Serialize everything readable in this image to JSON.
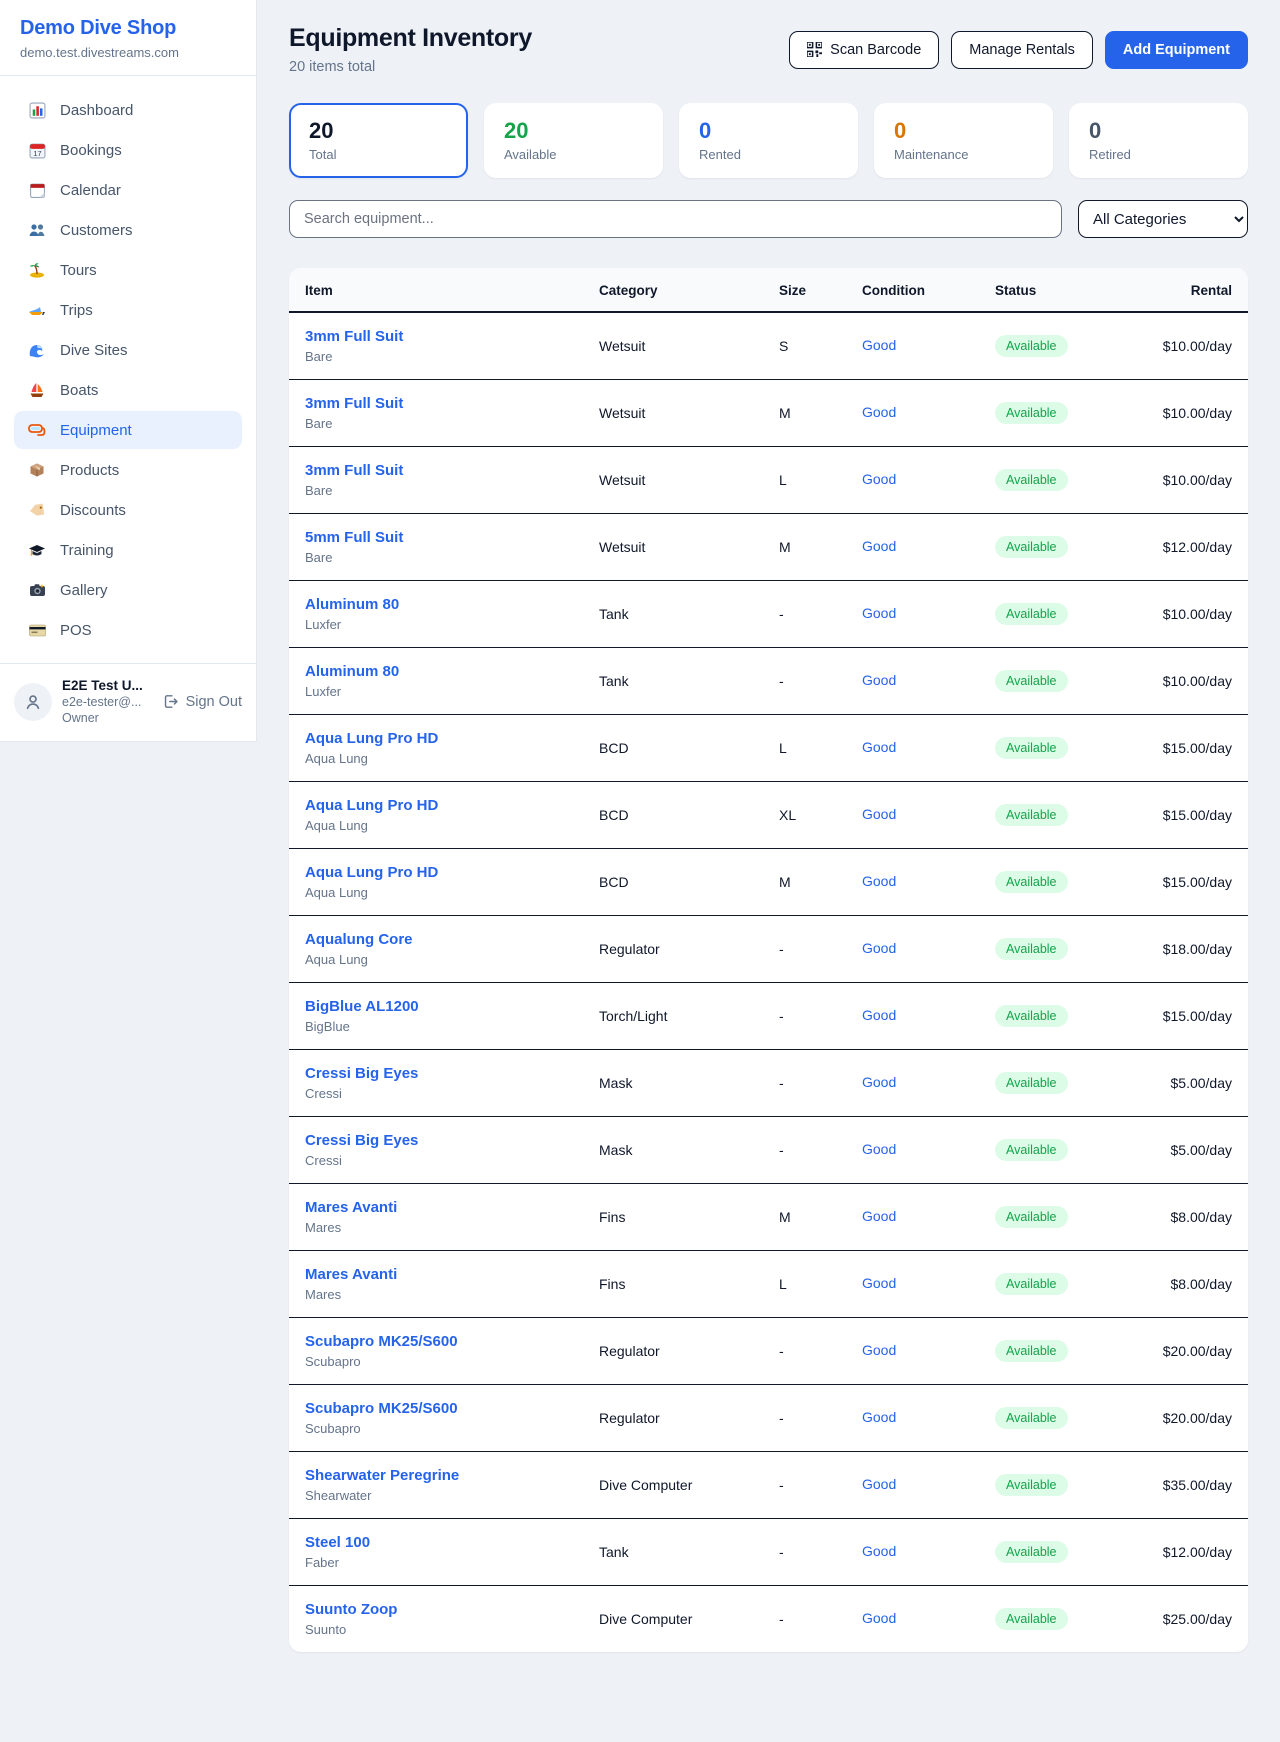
{
  "sidebar": {
    "brand": {
      "name": "Demo Dive Shop",
      "domain": "demo.test.divestreams.com"
    },
    "nav": [
      {
        "icon": "bar-chart",
        "label": "Dashboard",
        "active": false
      },
      {
        "icon": "calendar-date",
        "label": "Bookings",
        "active": false
      },
      {
        "icon": "calendar-pad",
        "label": "Calendar",
        "active": false
      },
      {
        "icon": "people",
        "label": "Customers",
        "active": false
      },
      {
        "icon": "palm-island",
        "label": "Tours",
        "active": false
      },
      {
        "icon": "speedboat",
        "label": "Trips",
        "active": false
      },
      {
        "icon": "wave",
        "label": "Dive Sites",
        "active": false
      },
      {
        "icon": "sailboat",
        "label": "Boats",
        "active": false
      },
      {
        "icon": "diving-mask",
        "label": "Equipment",
        "active": true
      },
      {
        "icon": "package",
        "label": "Products",
        "active": false
      },
      {
        "icon": "price-tag",
        "label": "Discounts",
        "active": false
      },
      {
        "icon": "graduation-cap",
        "label": "Training",
        "active": false
      },
      {
        "icon": "camera",
        "label": "Gallery",
        "active": false
      },
      {
        "icon": "credit-card",
        "label": "POS",
        "active": false
      }
    ],
    "user": {
      "name": "E2E Test U...",
      "email": "e2e-tester@...",
      "role": "Owner",
      "sign_out_label": "Sign Out"
    }
  },
  "header": {
    "title": "Equipment Inventory",
    "subtitle": "20 items total",
    "scan_barcode_label": "Scan Barcode",
    "manage_rentals_label": "Manage Rentals",
    "add_equipment_label": "Add Equipment"
  },
  "stats": [
    {
      "value": "20",
      "label": "Total",
      "color": "#0f172a",
      "selected": true
    },
    {
      "value": "20",
      "label": "Available",
      "color": "#16a34a",
      "selected": false
    },
    {
      "value": "0",
      "label": "Rented",
      "color": "#2563eb",
      "selected": false
    },
    {
      "value": "0",
      "label": "Maintenance",
      "color": "#d97706",
      "selected": false
    },
    {
      "value": "0",
      "label": "Retired",
      "color": "#475569",
      "selected": false
    }
  ],
  "filters": {
    "search_placeholder": "Search equipment...",
    "category_selected": "All Categories"
  },
  "table": {
    "columns": [
      "Item",
      "Category",
      "Size",
      "Condition",
      "Status",
      "Rental"
    ],
    "rows": [
      {
        "name": "3mm Full Suit",
        "brand": "Bare",
        "category": "Wetsuit",
        "size": "S",
        "condition": "Good",
        "status": "Available",
        "rental": "$10.00/day"
      },
      {
        "name": "3mm Full Suit",
        "brand": "Bare",
        "category": "Wetsuit",
        "size": "M",
        "condition": "Good",
        "status": "Available",
        "rental": "$10.00/day"
      },
      {
        "name": "3mm Full Suit",
        "brand": "Bare",
        "category": "Wetsuit",
        "size": "L",
        "condition": "Good",
        "status": "Available",
        "rental": "$10.00/day"
      },
      {
        "name": "5mm Full Suit",
        "brand": "Bare",
        "category": "Wetsuit",
        "size": "M",
        "condition": "Good",
        "status": "Available",
        "rental": "$12.00/day"
      },
      {
        "name": "Aluminum 80",
        "brand": "Luxfer",
        "category": "Tank",
        "size": "-",
        "condition": "Good",
        "status": "Available",
        "rental": "$10.00/day"
      },
      {
        "name": "Aluminum 80",
        "brand": "Luxfer",
        "category": "Tank",
        "size": "-",
        "condition": "Good",
        "status": "Available",
        "rental": "$10.00/day"
      },
      {
        "name": "Aqua Lung Pro HD",
        "brand": "Aqua Lung",
        "category": "BCD",
        "size": "L",
        "condition": "Good",
        "status": "Available",
        "rental": "$15.00/day"
      },
      {
        "name": "Aqua Lung Pro HD",
        "brand": "Aqua Lung",
        "category": "BCD",
        "size": "XL",
        "condition": "Good",
        "status": "Available",
        "rental": "$15.00/day"
      },
      {
        "name": "Aqua Lung Pro HD",
        "brand": "Aqua Lung",
        "category": "BCD",
        "size": "M",
        "condition": "Good",
        "status": "Available",
        "rental": "$15.00/day"
      },
      {
        "name": "Aqualung Core",
        "brand": "Aqua Lung",
        "category": "Regulator",
        "size": "-",
        "condition": "Good",
        "status": "Available",
        "rental": "$18.00/day"
      },
      {
        "name": "BigBlue AL1200",
        "brand": "BigBlue",
        "category": "Torch/Light",
        "size": "-",
        "condition": "Good",
        "status": "Available",
        "rental": "$15.00/day"
      },
      {
        "name": "Cressi Big Eyes",
        "brand": "Cressi",
        "category": "Mask",
        "size": "-",
        "condition": "Good",
        "status": "Available",
        "rental": "$5.00/day"
      },
      {
        "name": "Cressi Big Eyes",
        "brand": "Cressi",
        "category": "Mask",
        "size": "-",
        "condition": "Good",
        "status": "Available",
        "rental": "$5.00/day"
      },
      {
        "name": "Mares Avanti",
        "brand": "Mares",
        "category": "Fins",
        "size": "M",
        "condition": "Good",
        "status": "Available",
        "rental": "$8.00/day"
      },
      {
        "name": "Mares Avanti",
        "brand": "Mares",
        "category": "Fins",
        "size": "L",
        "condition": "Good",
        "status": "Available",
        "rental": "$8.00/day"
      },
      {
        "name": "Scubapro MK25/S600",
        "brand": "Scubapro",
        "category": "Regulator",
        "size": "-",
        "condition": "Good",
        "status": "Available",
        "rental": "$20.00/day"
      },
      {
        "name": "Scubapro MK25/S600",
        "brand": "Scubapro",
        "category": "Regulator",
        "size": "-",
        "condition": "Good",
        "status": "Available",
        "rental": "$20.00/day"
      },
      {
        "name": "Shearwater Peregrine",
        "brand": "Shearwater",
        "category": "Dive Computer",
        "size": "-",
        "condition": "Good",
        "status": "Available",
        "rental": "$35.00/day"
      },
      {
        "name": "Steel 100",
        "brand": "Faber",
        "category": "Tank",
        "size": "-",
        "condition": "Good",
        "status": "Available",
        "rental": "$12.00/day"
      },
      {
        "name": "Suunto Zoop",
        "brand": "Suunto",
        "category": "Dive Computer",
        "size": "-",
        "condition": "Good",
        "status": "Available",
        "rental": "$25.00/day"
      }
    ]
  },
  "colors": {
    "accent_blue": "#2563eb",
    "status_green": "#16a34a",
    "status_green_bg": "#dcfce7",
    "maintenance_orange": "#d97706",
    "retired_gray": "#475569",
    "row_border_dark": "#111827"
  }
}
